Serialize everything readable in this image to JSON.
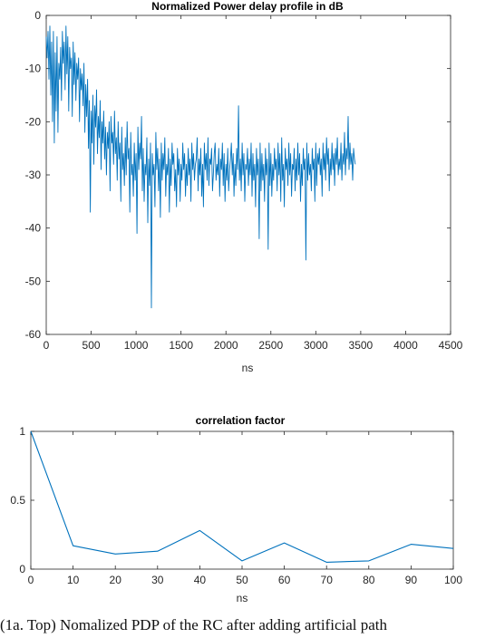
{
  "chart_data": [
    {
      "type": "line",
      "title": "Normalized Power delay profile in dB",
      "xlabel": "ns",
      "ylabel": "",
      "xlim": [
        0,
        4500
      ],
      "ylim": [
        -60,
        0
      ],
      "xticks": [
        0,
        500,
        1000,
        1500,
        2000,
        2500,
        3000,
        3500,
        4000,
        4500
      ],
      "yticks": [
        0,
        -10,
        -20,
        -30,
        -40,
        -50,
        -60
      ],
      "grid": false,
      "color": "#0072BD",
      "x_step": 10,
      "series": [
        {
          "values": [
            -4,
            -8,
            -3,
            -12,
            -2,
            -15,
            -5,
            -20,
            -3,
            -24,
            -7,
            -18,
            -4,
            -22,
            -9,
            -12,
            -6,
            -16,
            -3,
            -9,
            -5,
            -14,
            -2,
            -11,
            -4,
            -18,
            -6,
            -10,
            -8,
            -19,
            -5,
            -13,
            -7,
            -16,
            -9,
            -12,
            -8,
            -20,
            -10,
            -14,
            -11,
            -17,
            -9,
            -22,
            -13,
            -19,
            -12,
            -25,
            -16,
            -37,
            -18,
            -24,
            -15,
            -28,
            -17,
            -21,
            -14,
            -26,
            -19,
            -23,
            -16,
            -29,
            -20,
            -24,
            -18,
            -27,
            -21,
            -30,
            -22,
            -25,
            -20,
            -33,
            -19,
            -24,
            -22,
            -28,
            -18,
            -26,
            -23,
            -31,
            -20,
            -27,
            -24,
            -35,
            -21,
            -29,
            -26,
            -32,
            -23,
            -30,
            -20,
            -27,
            -25,
            -37,
            -22,
            -30,
            -28,
            -34,
            -24,
            -31,
            -26,
            -41,
            -21,
            -29,
            -24,
            -27,
            -19,
            -33,
            -25,
            -35,
            -28,
            -30,
            -23,
            -39,
            -27,
            -32,
            -24,
            -55,
            -26,
            -30,
            -28,
            -36,
            -22,
            -29,
            -25,
            -33,
            -27,
            -38,
            -24,
            -31,
            -26,
            -29,
            -23,
            -34,
            -28,
            -30,
            -25,
            -37,
            -27,
            -32,
            -24,
            -28,
            -26,
            -33,
            -29,
            -36,
            -25,
            -30,
            -27,
            -35,
            -28,
            -31,
            -24,
            -29,
            -26,
            -34,
            -28,
            -32,
            -25,
            -30,
            -27,
            -35,
            -24,
            -29,
            -26,
            -31,
            -28,
            -27,
            -23,
            -33,
            -27,
            -30,
            -25,
            -34,
            -28,
            -36,
            -24,
            -29,
            -26,
            -31,
            -23,
            -32,
            -27,
            -28,
            -25,
            -33,
            -30,
            -26,
            -24,
            -31,
            -28,
            -30,
            -25,
            -34,
            -27,
            -29,
            -24,
            -32,
            -26,
            -35,
            -28,
            -31,
            -25,
            -33,
            -29,
            -27,
            -24,
            -30,
            -26,
            -34,
            -28,
            -32,
            -25,
            -29,
            -17,
            -31,
            -27,
            -33,
            -24,
            -30,
            -26,
            -35,
            -28,
            -29,
            -25,
            -32,
            -27,
            -30,
            -24,
            -34,
            -26,
            -31,
            -28,
            -36,
            -25,
            -30,
            -27,
            -42,
            -24,
            -33,
            -26,
            -31,
            -28,
            -35,
            -25,
            -30,
            -27,
            -44,
            -24,
            -32,
            -26,
            -34,
            -28,
            -31,
            -25,
            -29,
            -27,
            -33,
            -24,
            -30,
            -26,
            -35,
            -23,
            -31,
            -28,
            -36,
            -25,
            -29,
            -27,
            -32,
            -24,
            -30,
            -26,
            -34,
            -28,
            -29,
            -25,
            -33,
            -27,
            -31,
            -24,
            -30,
            -26,
            -35,
            -28,
            -32,
            -25,
            -29,
            -27,
            -46,
            -24,
            -31,
            -26,
            -30,
            -28,
            -33,
            -25,
            -29,
            -27,
            -35,
            -24,
            -32,
            -26,
            -28,
            -25,
            -30,
            -27,
            -34,
            -24,
            -29,
            -26,
            -31,
            -23,
            -28,
            -25,
            -33,
            -27,
            -30,
            -24,
            -29,
            -26,
            -32,
            -25,
            -28,
            -23,
            -30,
            -27,
            -29,
            -24,
            -31,
            -26,
            -28,
            -22,
            -30,
            -25,
            -27,
            -19,
            -29,
            -24,
            -28,
            -26,
            -31,
            -25,
            -27,
            -28
          ]
        }
      ]
    },
    {
      "type": "line",
      "title": "correlation factor",
      "xlabel": "ns",
      "ylabel": "",
      "xlim": [
        0,
        100
      ],
      "ylim": [
        0,
        1
      ],
      "xticks": [
        0,
        10,
        20,
        30,
        40,
        50,
        60,
        70,
        80,
        90,
        100
      ],
      "yticks": [
        0,
        0.5,
        1
      ],
      "grid": false,
      "color": "#0072BD",
      "series": [
        {
          "x": [
            0,
            10,
            20,
            30,
            40,
            50,
            60,
            70,
            80,
            90,
            100
          ],
          "values": [
            1,
            0.17,
            0.11,
            0.13,
            0.28,
            0.06,
            0.19,
            0.05,
            0.06,
            0.18,
            0.15
          ]
        }
      ]
    }
  ],
  "caption": "(1a. Top) Nomalized PDP of the RC after adding artificial path"
}
